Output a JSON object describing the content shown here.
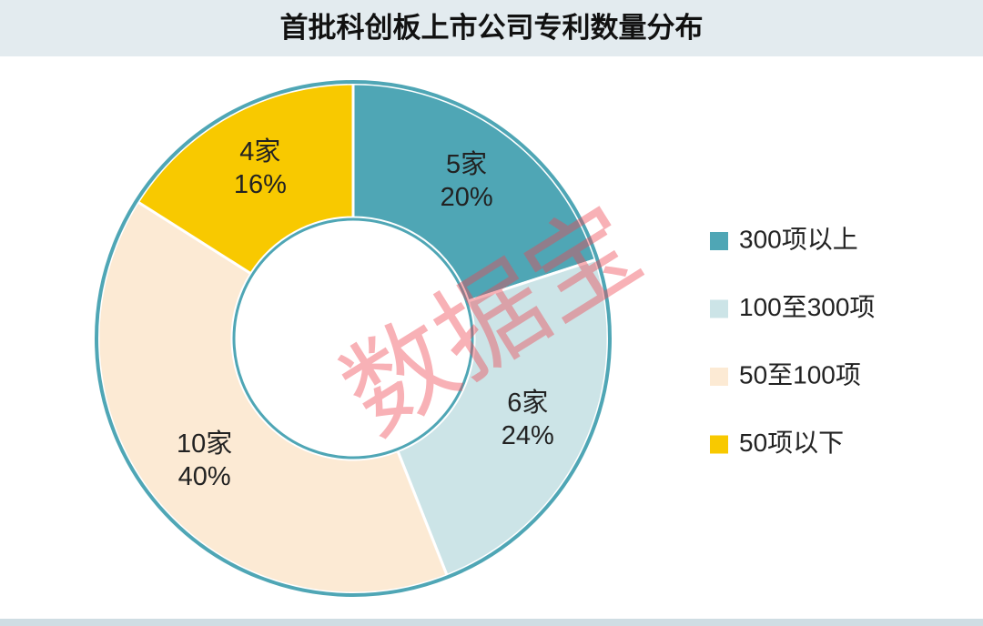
{
  "chart_data": {
    "type": "pie",
    "donut": true,
    "title": "首批科创板上市公司专利数量分布",
    "watermark": "数据宝",
    "categories": [
      "300项以上",
      "100至300项",
      "50至100项",
      "50项以下"
    ],
    "values": [
      20,
      24,
      40,
      16
    ],
    "value_labels": [
      "20%",
      "24%",
      "40%",
      "16%"
    ],
    "count_labels": [
      "5家",
      "6家",
      "10家",
      "4家"
    ],
    "colors": [
      "#4fa6b5",
      "#cce4e7",
      "#fcead4",
      "#f8c900"
    ],
    "legend": "right"
  }
}
